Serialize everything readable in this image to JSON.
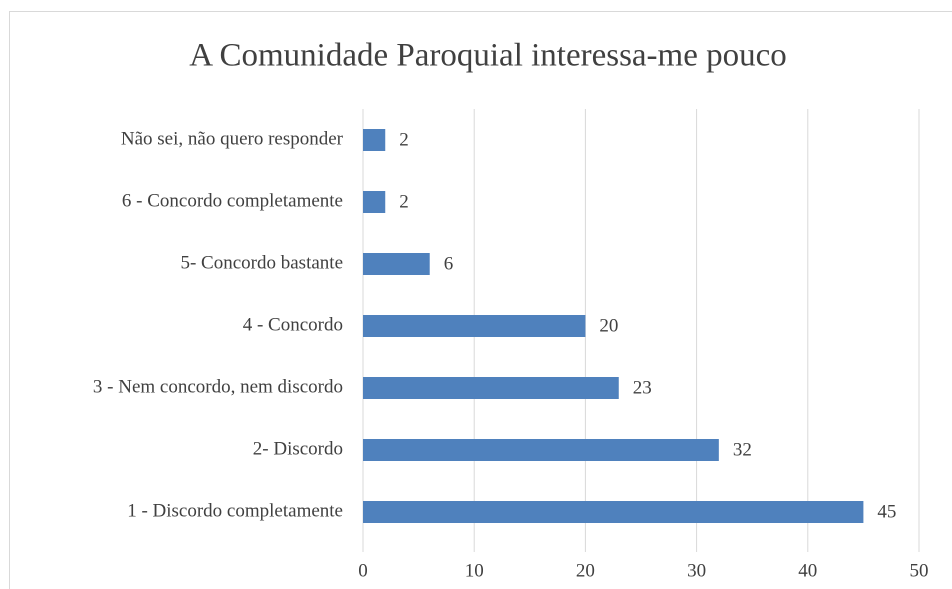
{
  "chart_data": {
    "type": "bar",
    "orientation": "horizontal",
    "title": "A Comunidade Paroquial interessa-me pouco",
    "categories": [
      "Não sei, não quero responder",
      "6 - Concordo completamente",
      "5- Concordo bastante",
      "4 - Concordo",
      "3 - Nem concordo, nem discordo",
      "2- Discordo",
      "1 - Discordo completamente"
    ],
    "values": [
      2,
      2,
      6,
      20,
      23,
      32,
      45
    ],
    "color": "#4f81bd",
    "xlim": [
      0,
      50
    ],
    "xticks": [
      0,
      10,
      20,
      30,
      40,
      50
    ],
    "grid": true
  }
}
